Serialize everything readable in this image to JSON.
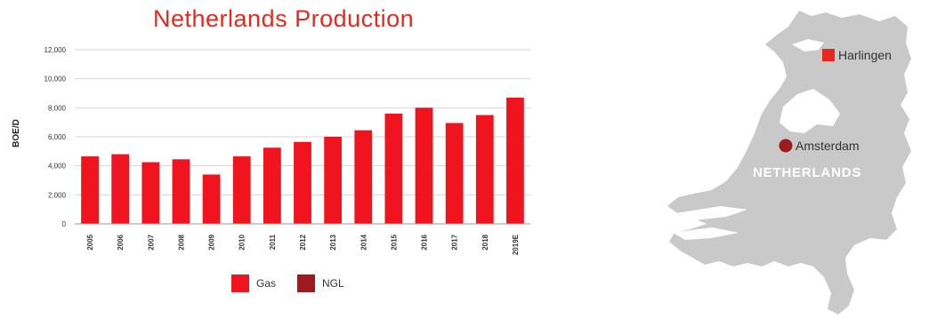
{
  "chart_data": {
    "type": "bar",
    "title": "Netherlands Production",
    "ylabel": "BOE/D",
    "xlabel": "",
    "ylim": [
      0,
      12000
    ],
    "yticks": [
      "0",
      "2,000",
      "4,000",
      "6,000",
      "8,000",
      "10,000",
      "12,000"
    ],
    "grid": true,
    "legend_position": "bottom",
    "categories": [
      "2005",
      "2006",
      "2007",
      "2008",
      "2009",
      "2010",
      "2011",
      "2012",
      "2013",
      "2014",
      "2015",
      "2016",
      "2017",
      "2018",
      "2019E"
    ],
    "series": [
      {
        "name": "Gas",
        "color": "#f0141e",
        "values": [
          4650,
          4800,
          4250,
          4450,
          3400,
          4650,
          5250,
          5650,
          6000,
          6450,
          7600,
          8000,
          6950,
          7500,
          8700
        ]
      },
      {
        "name": "NGL",
        "color": "#9b1b1e",
        "values": [
          0,
          0,
          0,
          0,
          0,
          0,
          0,
          0,
          0,
          0,
          0,
          0,
          0,
          0,
          0
        ]
      }
    ]
  },
  "map": {
    "country_label": "NETHERLANDS",
    "land_color": "#c9c9c9",
    "locations": [
      {
        "name": "Harlingen",
        "marker": "square",
        "color": "#e8281f"
      },
      {
        "name": "Amsterdam",
        "marker": "circle",
        "color": "#9b1b1e"
      }
    ]
  }
}
